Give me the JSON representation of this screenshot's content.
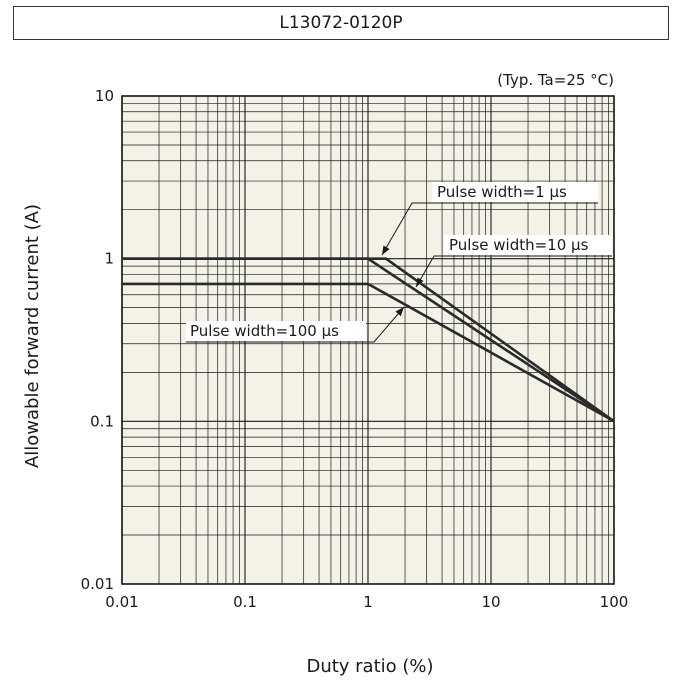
{
  "title": "L13072-0120P",
  "chart_data": {
    "type": "line",
    "title": "L13072-0120P",
    "note": "(Typ. Ta=25 °C)",
    "xlabel": "Duty ratio (%)",
    "ylabel": "Allowable forward current (A)",
    "x_scale": "log",
    "y_scale": "log",
    "xlim": [
      0.01,
      100
    ],
    "ylim": [
      0.01,
      10
    ],
    "x_ticks": [
      "0.01",
      "0.1",
      "1",
      "10",
      "100"
    ],
    "y_ticks": [
      "0.01",
      "0.1",
      "1",
      "10"
    ],
    "grid": true,
    "series": [
      {
        "name": "Pulse width=1 µs",
        "points": [
          [
            0.01,
            1.0
          ],
          [
            1.4,
            1.0
          ],
          [
            100,
            0.1
          ]
        ]
      },
      {
        "name": "Pulse width=10 µs",
        "points": [
          [
            0.01,
            1.0
          ],
          [
            1.0,
            1.0
          ],
          [
            100,
            0.1
          ]
        ]
      },
      {
        "name": "Pulse width=100 µs",
        "points": [
          [
            0.01,
            0.7
          ],
          [
            1.0,
            0.7
          ],
          [
            100,
            0.1
          ]
        ]
      }
    ]
  }
}
